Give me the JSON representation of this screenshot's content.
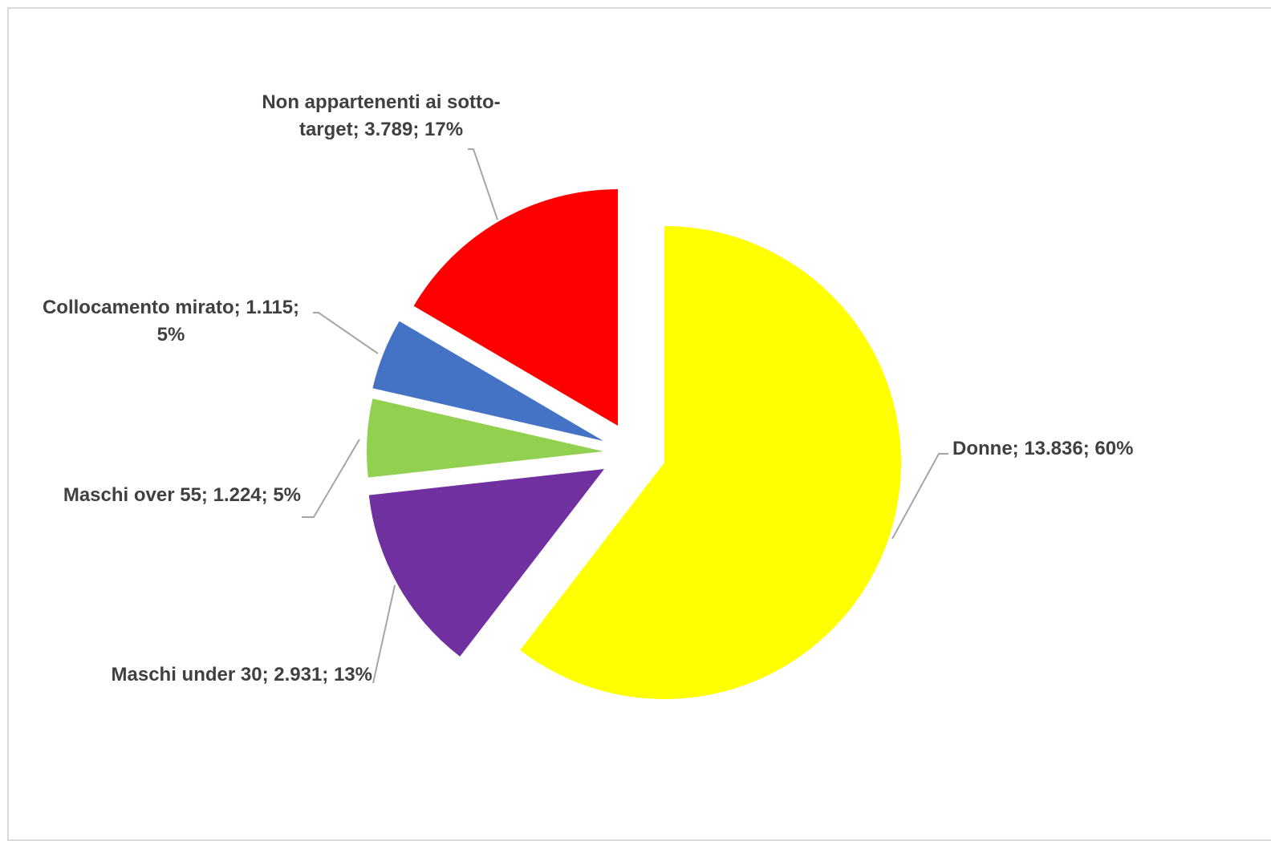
{
  "chart_data": {
    "type": "pie",
    "title": "",
    "start_angle": "12 o'clock",
    "direction": "clockwise",
    "exploded": true,
    "legend": "none",
    "slices": [
      {
        "name": "Donne",
        "value": 13836,
        "value_label": "13.836",
        "percent_label": "60%",
        "color": "#ffff00"
      },
      {
        "name": "Maschi under 30",
        "value": 2931,
        "value_label": "2.931",
        "percent_label": "13%",
        "color": "#7030a0"
      },
      {
        "name": "Maschi over 55",
        "value": 1224,
        "value_label": "1.224",
        "percent_label": "5%",
        "color": "#92d050"
      },
      {
        "name": "Collocamento mirato",
        "value": 1115,
        "value_label": "1.115",
        "percent_label": "5%",
        "color": "#4472c4"
      },
      {
        "name": "Non appartenenti ai sotto-target",
        "value": 3789,
        "value_label": "3.789",
        "percent_label": "17%",
        "color": "#ff0000"
      }
    ],
    "labels": [
      {
        "lines": [
          "Donne; 13.836; 60%"
        ]
      },
      {
        "lines": [
          "Maschi under 30; 2.931; 13%"
        ]
      },
      {
        "lines": [
          "Maschi over 55; 1.224; 5%"
        ]
      },
      {
        "lines": [
          "Collocamento mirato; 1.115;",
          "5%"
        ]
      },
      {
        "lines": [
          "Non appartenenti ai sotto-",
          "target; 3.789; 17%"
        ]
      }
    ]
  }
}
